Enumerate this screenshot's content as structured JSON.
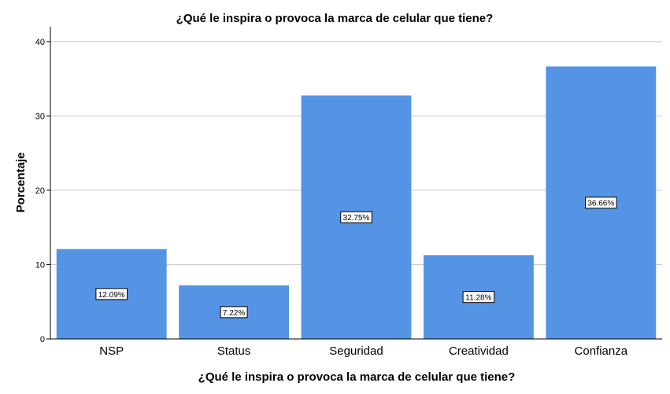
{
  "chart_data": {
    "type": "bar",
    "title": "¿Qué le inspira o provoca la marca de celular que tiene?",
    "xlabel": "¿Qué le inspira o provoca la marca de celular que tiene?",
    "ylabel": "Porcentaje",
    "categories": [
      "NSP",
      "Status",
      "Seguridad",
      "Creatividad",
      "Confianza"
    ],
    "values": [
      12.09,
      7.22,
      32.75,
      11.28,
      36.66
    ],
    "data_labels": [
      "12.09%",
      "7.22%",
      "32.75%",
      "11.28%",
      "36.66%"
    ],
    "ylim": [
      0,
      42
    ],
    "yticks": [
      0,
      10,
      20,
      30,
      40
    ],
    "grid": true,
    "bar_color": "#5594e4"
  }
}
